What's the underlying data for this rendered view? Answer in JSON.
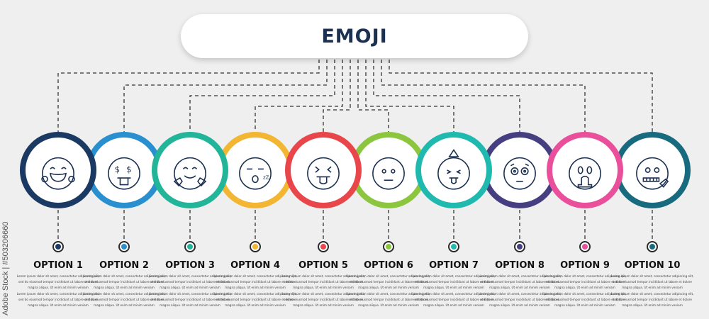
{
  "title": "EMOJI",
  "watermark": "Adobe Stock | #503206660",
  "description": "Lorem ipsum dolor sit amet, consectetur adipiscing elit, sed do eiusmod tempor incididunt ut labore et dolore magna aliqua. Ut enim ad minim veniam",
  "options": [
    {
      "label": "OPTION 1",
      "color": "#1b3a63",
      "icon": "face-with-tears-of-joy-icon"
    },
    {
      "label": "OPTION 2",
      "color": "#2a8fcf",
      "icon": "money-mouth-face-icon"
    },
    {
      "label": "OPTION 3",
      "color": "#22b59a",
      "icon": "hugging-face-icon"
    },
    {
      "label": "OPTION 4",
      "color": "#f2b632",
      "icon": "sleeping-face-icon"
    },
    {
      "label": "OPTION 5",
      "color": "#e8464a",
      "icon": "squinting-face-with-tongue-icon"
    },
    {
      "label": "OPTION 6",
      "color": "#8cc63f",
      "icon": "neutral-face-icon"
    },
    {
      "label": "OPTION 7",
      "color": "#1fb9b0",
      "icon": "party-face-with-tongue-icon"
    },
    {
      "label": "OPTION 8",
      "color": "#453f82",
      "icon": "flushed-face-icon"
    },
    {
      "label": "OPTION 9",
      "color": "#e94f9a",
      "icon": "vomiting-face-icon"
    },
    {
      "label": "OPTION 10",
      "color": "#186b7e",
      "icon": "zipper-mouth-face-icon"
    }
  ]
}
